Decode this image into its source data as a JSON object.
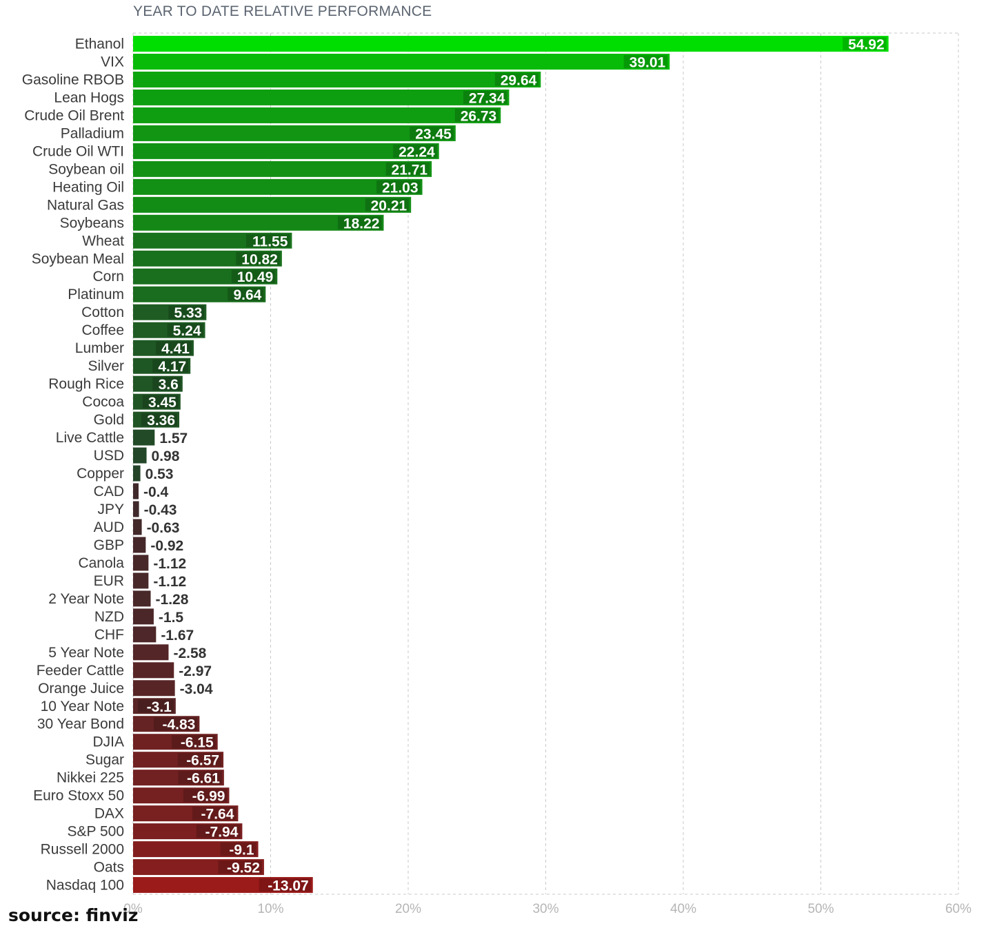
{
  "source_label": "source: finviz",
  "chart_data": {
    "type": "bar",
    "orientation": "horizontal",
    "title": "YEAR TO DATE RELATIVE PERFORMANCE",
    "xlabel": "",
    "ylabel": "",
    "xlim": [
      0,
      60
    ],
    "x_ticks": [
      "0%",
      "10%",
      "20%",
      "30%",
      "40%",
      "50%",
      "60%"
    ],
    "grid": "vertical dashed",
    "bar_length_uses_absolute_value": true,
    "colors": {
      "positive_max": "#00dd00",
      "positive_min": "#253d2b",
      "negative_min": "#3a2a2c",
      "negative_max": "#9b1a1a",
      "grid": "#c8c8c8",
      "label_text": "#3a3a3a",
      "tick_text": "#b5b5b5"
    },
    "categories": [
      "Ethanol",
      "VIX",
      "Gasoline RBOB",
      "Lean Hogs",
      "Crude Oil Brent",
      "Palladium",
      "Crude Oil WTI",
      "Soybean oil",
      "Heating Oil",
      "Natural Gas",
      "Soybeans",
      "Wheat",
      "Soybean Meal",
      "Corn",
      "Platinum",
      "Cotton",
      "Coffee",
      "Lumber",
      "Silver",
      "Rough Rice",
      "Cocoa",
      "Gold",
      "Live Cattle",
      "USD",
      "Copper",
      "CAD",
      "JPY",
      "AUD",
      "GBP",
      "Canola",
      "EUR",
      "2 Year Note",
      "NZD",
      "CHF",
      "5 Year Note",
      "Feeder Cattle",
      "Orange Juice",
      "10 Year Note",
      "30 Year Bond",
      "DJIA",
      "Sugar",
      "Nikkei 225",
      "Euro Stoxx 50",
      "DAX",
      "S&P 500",
      "Russell 2000",
      "Oats",
      "Nasdaq 100"
    ],
    "values": [
      54.92,
      39.01,
      29.64,
      27.34,
      26.73,
      23.45,
      22.24,
      21.71,
      21.03,
      20.21,
      18.22,
      11.55,
      10.82,
      10.49,
      9.64,
      5.33,
      5.24,
      4.41,
      4.17,
      3.6,
      3.45,
      3.36,
      1.57,
      0.98,
      0.53,
      -0.4,
      -0.43,
      -0.63,
      -0.92,
      -1.12,
      -1.12,
      -1.28,
      -1.5,
      -1.67,
      -2.58,
      -2.97,
      -3.04,
      -3.1,
      -4.83,
      -6.15,
      -6.57,
      -6.61,
      -6.99,
      -7.64,
      -7.94,
      -9.1,
      -9.52,
      -13.07
    ],
    "value_labels": [
      "54.92",
      "39.01",
      "29.64",
      "27.34",
      "26.73",
      "23.45",
      "22.24",
      "21.71",
      "21.03",
      "20.21",
      "18.22",
      "11.55",
      "10.82",
      "10.49",
      "9.64",
      "5.33",
      "5.24",
      "4.41",
      "4.17",
      "3.6",
      "3.45",
      "3.36",
      "1.57",
      "0.98",
      "0.53",
      "-0.4",
      "-0.43",
      "-0.63",
      "-0.92",
      "-1.12",
      "-1.12",
      "-1.28",
      "-1.5",
      "-1.67",
      "-2.58",
      "-2.97",
      "-3.04",
      "-3.1",
      "-4.83",
      "-6.15",
      "-6.57",
      "-6.61",
      "-6.99",
      "-7.64",
      "-7.94",
      "-9.1",
      "-9.52",
      "-13.07"
    ]
  }
}
